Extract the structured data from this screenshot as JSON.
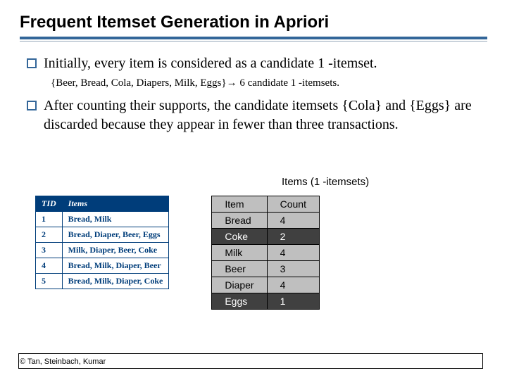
{
  "title": "Frequent Itemset Generation in Apriori",
  "bullets": [
    {
      "text": "Initially, every item is considered as a candidate 1 -itemset.",
      "sub": "{Beer, Bread, Cola, Diapers, Milk, Eggs}→ 6 candidate 1 -itemsets."
    },
    {
      "text": "After counting their supports, the candidate itemsets {Cola} and {Eggs} are discarded because they appear in fewer than three transactions."
    }
  ],
  "items_caption": "Items (1 -itemsets)",
  "tx_table": {
    "headers": [
      "TID",
      "Items"
    ],
    "rows": [
      [
        "1",
        "Bread, Milk"
      ],
      [
        "2",
        "Bread, Diaper, Beer, Eggs"
      ],
      [
        "3",
        "Milk, Diaper, Beer, Coke"
      ],
      [
        "4",
        "Bread, Milk, Diaper, Beer"
      ],
      [
        "5",
        "Bread, Milk, Diaper, Coke"
      ]
    ],
    "header_bg": "#003d7a",
    "header_fg": "#ffffff",
    "cell_fg": "#003d7a",
    "border_color": "#003d7a"
  },
  "items_table": {
    "headers": [
      "Item",
      "Count"
    ],
    "rows": [
      {
        "item": "Bread",
        "count": 4,
        "highlight": false
      },
      {
        "item": "Coke",
        "count": 2,
        "highlight": true
      },
      {
        "item": "Milk",
        "count": 4,
        "highlight": false
      },
      {
        "item": "Beer",
        "count": 3,
        "highlight": false
      },
      {
        "item": "Diaper",
        "count": 4,
        "highlight": false
      },
      {
        "item": "Eggs",
        "count": 1,
        "highlight": true
      }
    ],
    "header_bg": "#bfbfbf",
    "row_bg": "#bfbfbf",
    "highlight_bg": "#404040",
    "highlight_fg": "#ffffff",
    "border_color": "#000000"
  },
  "footer": "© Tan, Steinbach, Kumar",
  "colors": {
    "accent": "#336699",
    "background": "#ffffff"
  }
}
